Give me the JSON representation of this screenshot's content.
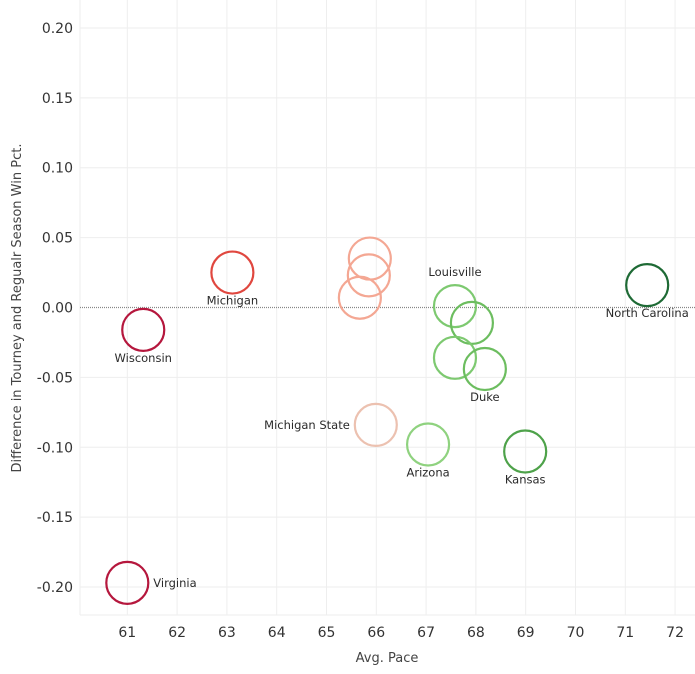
{
  "chart_data": {
    "type": "scatter",
    "title": "",
    "xlabel": "Avg. Pace",
    "ylabel": "Difference in Tourney and Regualr Season Win Pct.",
    "xlim": [
      60.05,
      72.4
    ],
    "ylim": [
      -0.22,
      0.22
    ],
    "xticks": [
      61,
      62,
      63,
      64,
      65,
      66,
      67,
      68,
      69,
      70,
      71,
      72
    ],
    "xtick_labels": [
      "61",
      "62",
      "63",
      "64",
      "65",
      "66",
      "67",
      "68",
      "69",
      "70",
      "71",
      "72"
    ],
    "yticks": [
      0.2,
      0.15,
      0.1,
      0.05,
      0.0,
      -0.05,
      -0.1,
      -0.15,
      -0.2
    ],
    "ytick_labels": [
      "0.20",
      "0.15",
      "0.10",
      "0.05",
      "0.00",
      "-0.05",
      "-0.10",
      "-0.15",
      "-0.20"
    ],
    "grid": true,
    "zero_line": true,
    "marker": "open-circle",
    "points": [
      {
        "x": 61.0,
        "y": -0.197,
        "label": "Virginia",
        "label_pos": "right",
        "color": "#b5173d"
      },
      {
        "x": 61.32,
        "y": -0.016,
        "label": "Wisconsin",
        "label_pos": "bottom",
        "color": "#b5173d"
      },
      {
        "x": 63.11,
        "y": 0.025,
        "label": "Michigan",
        "label_pos": "bottom",
        "color": "#e0473f"
      },
      {
        "x": 65.87,
        "y": 0.035,
        "label": "",
        "label_pos": "none",
        "color": "#f4a793"
      },
      {
        "x": 65.85,
        "y": 0.023,
        "label": "",
        "label_pos": "none",
        "color": "#f4a793"
      },
      {
        "x": 65.67,
        "y": 0.007,
        "label": "",
        "label_pos": "none",
        "color": "#f4a793"
      },
      {
        "x": 65.99,
        "y": -0.084,
        "label": "Michigan State",
        "label_pos": "left",
        "color": "#ecc1b0"
      },
      {
        "x": 67.58,
        "y": 0.001,
        "label": "Louisville",
        "label_pos": "top",
        "color": "#7dc970"
      },
      {
        "x": 67.92,
        "y": -0.011,
        "label": "",
        "label_pos": "none",
        "color": "#6cbd5f"
      },
      {
        "x": 67.58,
        "y": -0.036,
        "label": "",
        "label_pos": "none",
        "color": "#7dc970"
      },
      {
        "x": 68.18,
        "y": -0.044,
        "label": "Duke",
        "label_pos": "bottom",
        "color": "#6cbd5f"
      },
      {
        "x": 67.04,
        "y": -0.098,
        "label": "Arizona",
        "label_pos": "bottom",
        "color": "#8fd27f"
      },
      {
        "x": 68.99,
        "y": -0.103,
        "label": "Kansas",
        "label_pos": "bottom",
        "color": "#4ea24a"
      },
      {
        "x": 71.44,
        "y": 0.016,
        "label": "North Carolina",
        "label_pos": "bottom",
        "color": "#1e6a35"
      }
    ]
  }
}
